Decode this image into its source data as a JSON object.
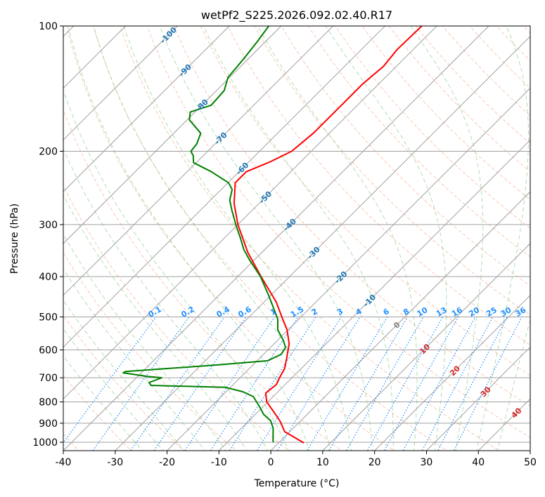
{
  "chart_data": {
    "type": "line",
    "subtype": "skew-t log-p",
    "title": "wetPf2_S225.2026.092.02.40.R17",
    "xlabel": "Temperature (°C)",
    "ylabel": "Pressure (hPa)",
    "xlim": [
      -40,
      50
    ],
    "ylim": [
      1050,
      100
    ],
    "x_ticks": [
      -40,
      -30,
      -20,
      -10,
      0,
      10,
      20,
      30,
      40,
      50
    ],
    "y_ticks": [
      100,
      200,
      300,
      400,
      500,
      600,
      700,
      800,
      900,
      1000
    ],
    "grid": true,
    "colors": {
      "temperature": "#ff0000",
      "dewpoint": "#008000",
      "isotherm": "#a0a0a0",
      "dry_adiabat": "#f4a582",
      "moist_adiabat": "#8fcf8f",
      "mixing_ratio": "#1e90ff",
      "isotherm_label_cold": "#1f77b4",
      "isotherm_label_zero": "#808080",
      "isotherm_label_warm": "#d62728"
    },
    "series": [
      {
        "name": "Temperature",
        "pressure": [
          1004,
          943,
          890,
          840,
          800,
          762,
          727,
          700,
          665,
          628,
          580,
          537,
          500,
          460,
          400,
          350,
          300,
          267,
          238,
          224,
          212,
          200,
          181,
          155,
          138,
          125,
          114,
          100
        ],
        "temperature": [
          4.9,
          -1.0,
          -3.9,
          -7.3,
          -10.2,
          -12.1,
          -11.7,
          -12.4,
          -13.2,
          -14.8,
          -17.1,
          -20.2,
          -23.7,
          -27.7,
          -35.5,
          -42.7,
          -50.0,
          -54.8,
          -58.6,
          -58.6,
          -55.9,
          -53.8,
          -53.1,
          -53.1,
          -53.1,
          -52.5,
          -53.1,
          -52.9
        ]
      },
      {
        "name": "Dewpoint",
        "pressure": [
          1000,
          925,
          888,
          857,
          824,
          777,
          756,
          738,
          730,
          719,
          700,
          695,
          681,
          676,
          652,
          637,
          615,
          592,
          569,
          537,
          507,
          488,
          443,
          400,
          365,
          344,
          324,
          300,
          278,
          262,
          247,
          238,
          224,
          213,
          205,
          200,
          192,
          181,
          168,
          161,
          155,
          143,
          133,
          120,
          109,
          100
        ],
        "temperature": [
          -1.2,
          -3.9,
          -5.8,
          -8.4,
          -10.5,
          -13.8,
          -16.8,
          -21.0,
          -35.7,
          -36.6,
          -35.1,
          -38.1,
          -43.5,
          -43.3,
          -26.7,
          -18.0,
          -16.6,
          -17.1,
          -18.9,
          -22.0,
          -24.0,
          -25.8,
          -30.5,
          -35.6,
          -40.9,
          -44.1,
          -46.8,
          -50.4,
          -53.8,
          -56.3,
          -57.9,
          -59.9,
          -65.3,
          -70.5,
          -71.9,
          -73.2,
          -73.5,
          -74.8,
          -79.6,
          -80.9,
          -78.2,
          -78.5,
          -80.3,
          -80.9,
          -81.6,
          -82.4
        ]
      }
    ],
    "isotherm_labels": [
      "-100",
      "-90",
      "-80",
      "-70",
      "-60",
      "-50",
      "-40",
      "-30",
      "-20",
      "-10",
      "0",
      "10",
      "20",
      "30",
      "40"
    ],
    "mixing_ratio_labels": [
      "0.1",
      "0.2",
      "0.4",
      "0.6",
      "1",
      "1.5",
      "2",
      "3",
      "4",
      "6",
      "8",
      "10",
      "13",
      "16",
      "20",
      "25",
      "30",
      "36"
    ]
  }
}
